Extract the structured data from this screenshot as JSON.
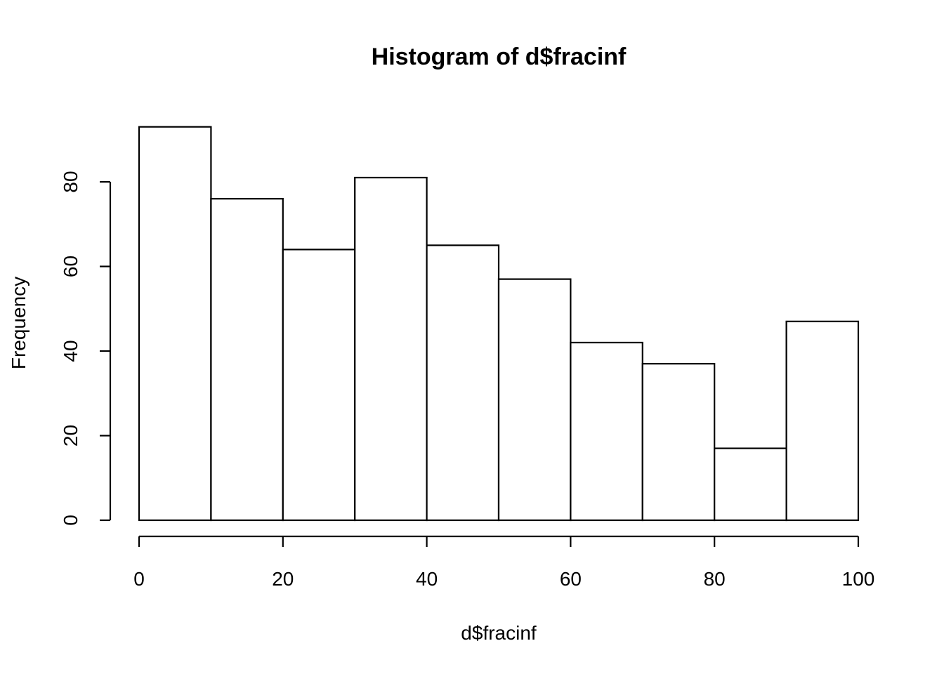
{
  "chart_data": {
    "type": "bar",
    "title": "Histogram of d$fracinf",
    "xlabel": "d$fracinf",
    "ylabel": "Frequency",
    "bins": [
      {
        "start": 0,
        "end": 10,
        "count": 93
      },
      {
        "start": 10,
        "end": 20,
        "count": 76
      },
      {
        "start": 20,
        "end": 30,
        "count": 64
      },
      {
        "start": 30,
        "end": 40,
        "count": 81
      },
      {
        "start": 40,
        "end": 50,
        "count": 65
      },
      {
        "start": 50,
        "end": 60,
        "count": 57
      },
      {
        "start": 60,
        "end": 70,
        "count": 42
      },
      {
        "start": 70,
        "end": 80,
        "count": 37
      },
      {
        "start": 80,
        "end": 90,
        "count": 17
      },
      {
        "start": 90,
        "end": 100,
        "count": 47
      }
    ],
    "xlim": [
      0,
      100
    ],
    "ylim": [
      0,
      93
    ],
    "x_ticks": [
      0,
      20,
      40,
      60,
      80,
      100
    ],
    "y_ticks": [
      0,
      20,
      40,
      60,
      80
    ],
    "grid": false,
    "legend": "none",
    "colors": {
      "bar_fill": "#ffffff",
      "bar_stroke": "#000000"
    }
  }
}
